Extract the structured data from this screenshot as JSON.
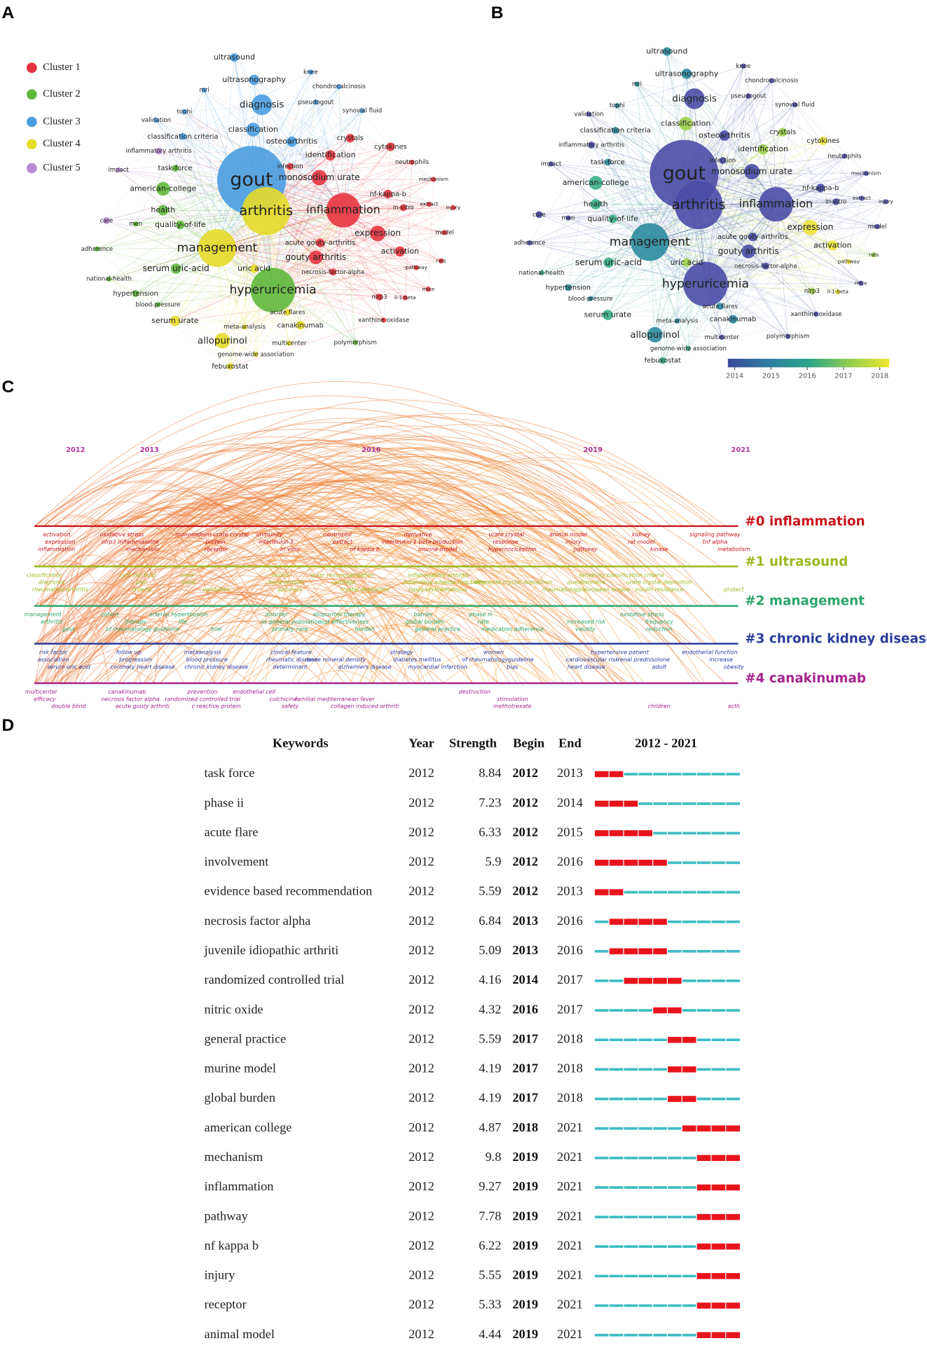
{
  "panels": {
    "a": "A",
    "b": "B",
    "c": "C",
    "d": "D"
  },
  "network": {
    "legend": [
      {
        "name": "Cluster 1",
        "color": "#e8343f"
      },
      {
        "name": "Cluster 2",
        "color": "#5fb83c"
      },
      {
        "name": "Cluster 3",
        "color": "#4a9de0"
      },
      {
        "name": "Cluster 4",
        "color": "#e5dc2a"
      },
      {
        "name": "Cluster 5",
        "color": "#b98bd4"
      }
    ],
    "nodes": [
      {
        "label": "gout",
        "color": "#4a9de0",
        "color_b": "#4a4ca6"
      },
      {
        "label": "arthritis",
        "color": "#e5dc2a",
        "color_b": "#4a4ca6"
      },
      {
        "label": "inflammation",
        "color": "#e8343f",
        "color_b": "#4a4ca6"
      },
      {
        "label": "hyperuricemia",
        "color": "#5fb83c",
        "color_b": "#4a4ca6"
      },
      {
        "label": "management",
        "color": "#e5dc2a",
        "color_b": "#2c8ca0"
      },
      {
        "label": "ultrasound",
        "color": "#4a9de0",
        "color_b": "#2c8ca0"
      },
      {
        "label": "ultrasonography",
        "color": "#4a9de0",
        "color_b": "#2c8ca0"
      },
      {
        "label": "diagnosis",
        "color": "#4a9de0",
        "color_b": "#4a4ca6"
      },
      {
        "label": "classification",
        "color": "#4a9de0",
        "color_b": "#9fd14b"
      },
      {
        "label": "osteoarthritis",
        "color": "#4a9de0",
        "color_b": "#4a4ca6"
      },
      {
        "label": "knee",
        "color": "#4a9de0",
        "color_b": "#4a4ca6"
      },
      {
        "label": "chondrocalcinosis",
        "color": "#4a9de0",
        "color_b": "#4a4ca6"
      },
      {
        "label": "pseudogout",
        "color": "#4a9de0",
        "color_b": "#4a4ca6"
      },
      {
        "label": "synovial fluid",
        "color": "#4a9de0",
        "color_b": "#4a4ca6"
      },
      {
        "label": "mri",
        "color": "#4a9de0",
        "color_b": "#2c8ca0"
      },
      {
        "label": "tophi",
        "color": "#4a9de0",
        "color_b": "#2c8ca0"
      },
      {
        "label": "validation",
        "color": "#4a9de0",
        "color_b": "#4a4ca6"
      },
      {
        "label": "classification criteria",
        "color": "#4a9de0",
        "color_b": "#2c8ca0"
      },
      {
        "label": "crystals",
        "color": "#e8343f",
        "color_b": "#9fd14b"
      },
      {
        "label": "cytokines",
        "color": "#e8343f",
        "color_b": "#ece33a"
      },
      {
        "label": "identification",
        "color": "#e8343f",
        "color_b": "#9fd14b"
      },
      {
        "label": "inflammatory arthritis",
        "color": "#b98bd4",
        "color_b": "#4a4ca6"
      },
      {
        "label": "task-force",
        "color": "#5fb83c",
        "color_b": "#2c8ca0"
      },
      {
        "label": "impact",
        "color": "#b98bd4",
        "color_b": "#4a4ca6"
      },
      {
        "label": "infection",
        "color": "#e8343f",
        "color_b": "#4a4ca6"
      },
      {
        "label": "neutrophils",
        "color": "#e8343f",
        "color_b": "#4a4ca6"
      },
      {
        "label": "monosodium urate",
        "color": "#e8343f",
        "color_b": "#4a4ca6"
      },
      {
        "label": "mechanism",
        "color": "#e8343f",
        "color_b": "#4a4ca6"
      },
      {
        "label": "american-college",
        "color": "#5fb83c",
        "color_b": "#3bb08a"
      },
      {
        "label": "nf-kappa-b",
        "color": "#e8343f",
        "color_b": "#4a4ca6"
      },
      {
        "label": "health",
        "color": "#5fb83c",
        "color_b": "#3bb08a"
      },
      {
        "label": "in-vitro",
        "color": "#e8343f",
        "color_b": "#4a4ca6"
      },
      {
        "label": "extract",
        "color": "#e8343f",
        "color_b": "#4a4ca6"
      },
      {
        "label": "injury",
        "color": "#e8343f",
        "color_b": "#4a4ca6"
      },
      {
        "label": "care",
        "color": "#b98bd4",
        "color_b": "#4a4ca6"
      },
      {
        "label": "men",
        "color": "#5fb83c",
        "color_b": "#4a4ca6"
      },
      {
        "label": "quality-of-life",
        "color": "#5fb83c",
        "color_b": "#3bb08a"
      },
      {
        "label": "expression",
        "color": "#e8343f",
        "color_b": "#ece33a"
      },
      {
        "label": "model",
        "color": "#e8343f",
        "color_b": "#4a4ca6"
      },
      {
        "label": "adherence",
        "color": "#5fb83c",
        "color_b": "#4a4ca6"
      },
      {
        "label": "acute gouty-arthritis",
        "color": "#e8343f",
        "color_b": "#4a4ca6"
      },
      {
        "label": "activation",
        "color": "#e8343f",
        "color_b": "#ece33a"
      },
      {
        "label": "gouty arthritis",
        "color": "#e8343f",
        "color_b": "#4a4ca6"
      },
      {
        "label": "serum uric-acid",
        "color": "#5fb83c",
        "color_b": "#3bb08a"
      },
      {
        "label": "uric acid",
        "color": "#e5dc2a",
        "color_b": "#9fd14b"
      },
      {
        "label": "rats",
        "color": "#e8343f",
        "color_b": "#9fd14b"
      },
      {
        "label": "necrosis-factor-alpha",
        "color": "#e8343f",
        "color_b": "#4a4ca6"
      },
      {
        "label": "pathway",
        "color": "#e8343f",
        "color_b": "#ece33a"
      },
      {
        "label": "national-health",
        "color": "#5fb83c",
        "color_b": "#3bb08a"
      },
      {
        "label": "hypertension",
        "color": "#5fb83c",
        "color_b": "#2c8ca0"
      },
      {
        "label": "nlrp3",
        "color": "#e8343f",
        "color_b": "#9fd14b"
      },
      {
        "label": "il-1-beta",
        "color": "#e8343f",
        "color_b": "#ece33a"
      },
      {
        "label": "mice",
        "color": "#e8343f",
        "color_b": "#4a4ca6"
      },
      {
        "label": "blood-pressure",
        "color": "#5fb83c",
        "color_b": "#2c8ca0"
      },
      {
        "label": "acute flares",
        "color": "#e5dc2a",
        "color_b": "#2c8ca0"
      },
      {
        "label": "xanthine oxidase",
        "color": "#e8343f",
        "color_b": "#4a4ca6"
      },
      {
        "label": "serum urate",
        "color": "#e5dc2a",
        "color_b": "#3bb08a"
      },
      {
        "label": "meta-analysis",
        "color": "#e5dc2a",
        "color_b": "#2c8ca0"
      },
      {
        "label": "canakinumab",
        "color": "#e5dc2a",
        "color_b": "#2c8ca0"
      },
      {
        "label": "polymorphism",
        "color": "#5fb83c",
        "color_b": "#4a4ca6"
      },
      {
        "label": "allopurinol",
        "color": "#e5dc2a",
        "color_b": "#2c8ca0"
      },
      {
        "label": "multicenter",
        "color": "#e5dc2a",
        "color_b": "#4a4ca6"
      },
      {
        "label": "genome-wide association",
        "color": "#e5dc2a",
        "color_b": "#3bb08a"
      },
      {
        "label": "febuxostat",
        "color": "#e5dc2a",
        "color_b": "#3bb08a"
      }
    ],
    "colorbar": {
      "ticks": [
        2014,
        2015,
        2016,
        2017,
        2018
      ],
      "colors": [
        "#3b4b9a",
        "#2f7da0",
        "#2aa58a",
        "#8fcc50",
        "#f0e530"
      ]
    }
  },
  "timeline": {
    "years": [
      2012,
      2013,
      2016,
      2019,
      2021
    ],
    "clusters": [
      {
        "name": "#0 inflammation",
        "color": "#c8161d",
        "keywords": [
          [
            "activation",
            "oxidative stress",
            "monosodium urate crystal",
            "immunity",
            "neutrophil",
            "derivative",
            "urate crystal",
            "animal model",
            "kidney",
            "signaling pathway"
          ],
          [
            "expression",
            "nlrp3 inflammasome",
            "protein",
            "interleukin 1",
            "extract",
            "interleukin 1 beta production",
            "response",
            "injury",
            "rat model",
            "tnf alpha"
          ],
          [
            "inflammation",
            "mechanism",
            "receptor",
            "in vitro",
            "nf kappa b",
            "murine model",
            "hypernociception",
            "pathway",
            "kinase",
            "metabolism"
          ]
        ]
      },
      {
        "name": "#1 ultrasound",
        "color": "#9ab81e",
        "keywords": [
          [
            "classification",
            "synovial fluid",
            "nerd",
            "lesion",
            "eular recommendation",
            "inflammatory arthritis",
            "reliability",
            "classification criteria"
          ],
          [
            "diagnosis",
            "pain",
            "bone",
            "bone erosion",
            "cartilage",
            "cutaneous adverse reaction",
            "rate",
            "dihydrate crystal deposition",
            "questionnaire",
            "urate crystal deposition"
          ],
          [
            "rheumatoid arthritis",
            "criteria",
            "validation",
            "accuracy",
            "crystal deposition",
            "lupus erythematosus",
            "rheumatology/european league",
            "insulin resistance",
            "protect"
          ]
        ]
      },
      {
        "name": "#2 management",
        "color": "#2ca56a",
        "keywords": [
          [
            "management",
            "cohort",
            "arterial hypertension",
            "disorder",
            "allopurinol therapy",
            "barrier",
            "phase iii",
            "oxidative stress"
          ],
          [
            "arthritis",
            "therapy",
            "life",
            "us general population",
            "cost effectiveness",
            "global burden",
            "rate",
            "increased risk",
            "frequency"
          ],
          [
            "gout",
            "of rheumatology guideline",
            "trial",
            "primary care",
            "burden",
            "general practice",
            "medication adherence",
            "validity",
            "reduction"
          ]
        ]
      },
      {
        "name": "#3 chronic kidney disease",
        "color": "#2b3c9e",
        "keywords": [
          [
            "risk factor",
            "follow up",
            "metaanalysis",
            "clinical feature",
            "strategy",
            "women",
            "hypertensive patient",
            "endothelial function"
          ],
          [
            "association",
            "progression",
            "blood pressure",
            "rheumatic disease",
            "bone mineral density",
            "diabetes mellitus",
            "of rheumatologyguideline",
            "cardiovascular risk",
            "renal prednisolone",
            "increase"
          ],
          [
            "serum uric acid",
            "coronary heart disease",
            "chronic kidney disease",
            "determinant",
            "alzheimers disease",
            "myocardial infarction",
            "bias",
            "heart disease",
            "adult",
            "obesity"
          ]
        ]
      },
      {
        "name": "#4 canakinumab",
        "color": "#a3248f",
        "keywords": [
          [
            "multicenter",
            "canakinumab",
            "prevention",
            "endothelial cell",
            "destruction"
          ],
          [
            "efficacy",
            "necrosis factor alpha",
            "randomized controlled trial",
            "colchicine",
            "familial mediterranean fever",
            "stimulation"
          ],
          [
            "double blind",
            "acute gouty arthriti",
            "c reactive protein",
            "safety",
            "collagen induced arthriti",
            "methotrexate",
            "children",
            "acth"
          ]
        ]
      }
    ]
  },
  "table": {
    "headers": [
      "Keywords",
      "Year",
      "Strength",
      "Begin",
      "End"
    ],
    "period": "2012 - 2021",
    "rows": [
      [
        "task force",
        2012,
        8.84,
        2012,
        2013
      ],
      [
        "phase ii",
        2012,
        7.23,
        2012,
        2014
      ],
      [
        "acute flare",
        2012,
        6.33,
        2012,
        2015
      ],
      [
        "involvement",
        2012,
        5.9,
        2012,
        2016
      ],
      [
        "evidence based recommendation",
        2012,
        5.59,
        2012,
        2013
      ],
      [
        "necrosis factor alpha",
        2012,
        6.84,
        2013,
        2016
      ],
      [
        "juvenile idiopathic arthriti",
        2012,
        5.09,
        2013,
        2016
      ],
      [
        "randomized controlled trial",
        2012,
        4.16,
        2014,
        2017
      ],
      [
        "nitric oxide",
        2012,
        4.32,
        2016,
        2017
      ],
      [
        "general practice",
        2012,
        5.59,
        2017,
        2018
      ],
      [
        "murine model",
        2012,
        4.19,
        2017,
        2018
      ],
      [
        "global burden",
        2012,
        4.19,
        2017,
        2018
      ],
      [
        "american college",
        2012,
        4.87,
        2018,
        2021
      ],
      [
        "mechanism",
        2012,
        9.8,
        2019,
        2021
      ],
      [
        "inflammation",
        2012,
        9.27,
        2019,
        2021
      ],
      [
        "pathway",
        2012,
        7.78,
        2019,
        2021
      ],
      [
        "nf kappa b",
        2012,
        6.22,
        2019,
        2021
      ],
      [
        "injury",
        2012,
        5.55,
        2019,
        2021
      ],
      [
        "receptor",
        2012,
        5.33,
        2019,
        2021
      ],
      [
        "animal model",
        2012,
        4.44,
        2019,
        2021
      ]
    ]
  }
}
